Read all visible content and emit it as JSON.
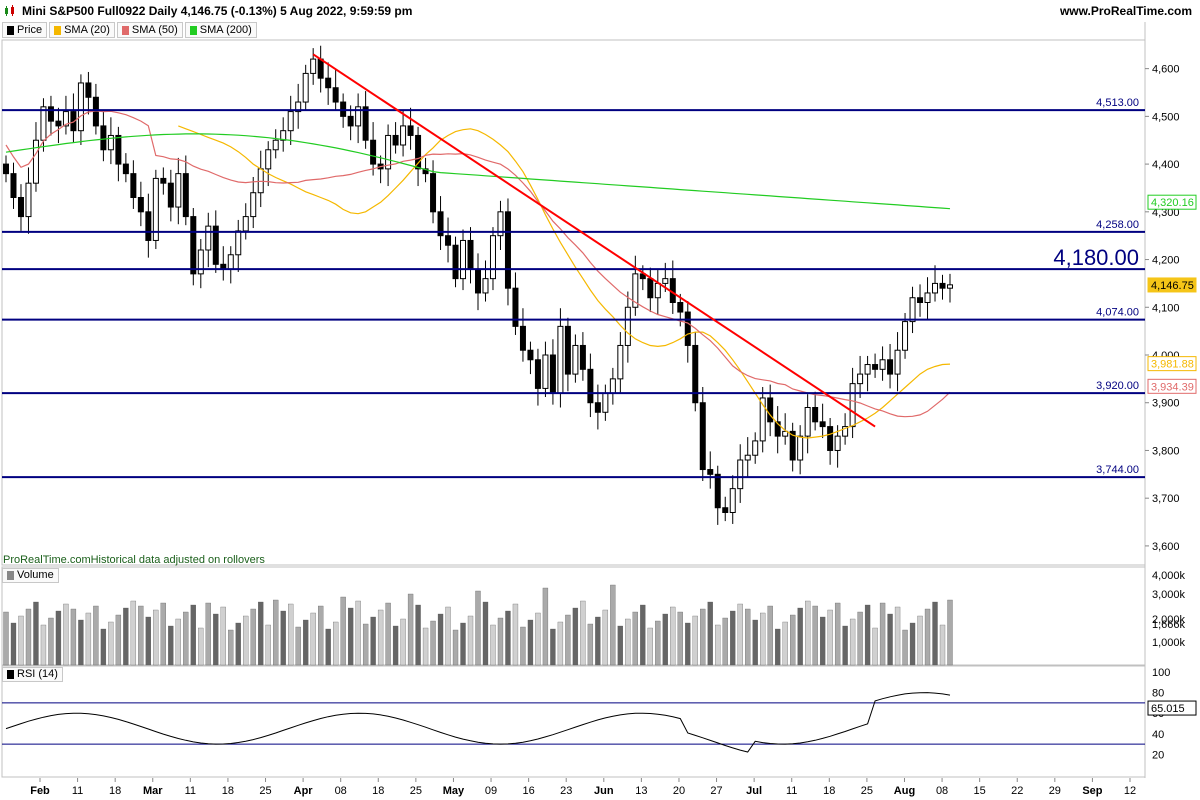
{
  "header": {
    "title": "Mini S&P500 Full0922 Daily 4,146.75 (-0.13%) 5 Aug 2022, 9:59:59 pm",
    "site": "www.ProRealTime.com"
  },
  "legend": {
    "items": [
      {
        "label": "Price",
        "color": "#000000"
      },
      {
        "label": "SMA (20)",
        "color": "#f5b800"
      },
      {
        "label": "SMA (50)",
        "color": "#e06a6a"
      },
      {
        "label": "SMA (200)",
        "color": "#22cc22"
      }
    ]
  },
  "footnote": "ProRealTime.comHistorical data adjusted on rollovers",
  "volume_panel": {
    "label": "Volume"
  },
  "rsi_panel": {
    "label": "RSI (14)"
  },
  "chart_data": {
    "type": "candlestick",
    "title": "Mini S&P500 Full0922 Daily",
    "y_axis": {
      "range": [
        3560,
        4660
      ],
      "ticks": [
        "3,600",
        "3,700",
        "3,800",
        "3,900",
        "4,000",
        "4,100",
        "4,200",
        "4,300",
        "4,400",
        "4,500",
        "4,600"
      ],
      "tick_values": [
        3600,
        3700,
        3800,
        3900,
        4000,
        4100,
        4200,
        4300,
        4400,
        4500,
        4600
      ]
    },
    "x_axis": {
      "ticks": [
        "Feb",
        "11",
        "18",
        "Mar",
        "11",
        "18",
        "25",
        "Apr",
        "08",
        "18",
        "25",
        "May",
        "09",
        "16",
        "23",
        "Jun",
        "13",
        "20",
        "27",
        "Jul",
        "11",
        "18",
        "25",
        "Aug",
        "08",
        "15",
        "22",
        "29",
        "Sep",
        "12"
      ],
      "bold": [
        "Feb",
        "Mar",
        "Apr",
        "May",
        "Jun",
        "Jul",
        "Aug",
        "Sep"
      ]
    },
    "levels": [
      {
        "value": 4513.0,
        "label": "4,513.00"
      },
      {
        "value": 4258.0,
        "label": "4,258.00"
      },
      {
        "value": 4180.0,
        "label": "4,180.00",
        "emphasis": true
      },
      {
        "value": 4074.0,
        "label": "4,074.00"
      },
      {
        "value": 3920.0,
        "label": "3,920.00"
      },
      {
        "value": 3744.0,
        "label": "3,744.00"
      }
    ],
    "trendline": {
      "from": {
        "date": "2022-03-29",
        "value": 4630
      },
      "to": {
        "date": "2022-08-01",
        "value": 3850
      },
      "color": "#ff0000"
    },
    "price_tags": [
      {
        "series": "SMA (200)",
        "label": "4,320.16",
        "value": 4320.16,
        "color": "#22cc22"
      },
      {
        "series": "Price",
        "label": "4,146.75",
        "value": 4146.75,
        "color": "#f5c518"
      },
      {
        "series": "SMA (20)",
        "label": "3,981.88",
        "value": 3981.88,
        "color": "#f5b800"
      },
      {
        "series": "SMA (50)",
        "label": "3,934.39",
        "value": 3934.39,
        "color": "#e06a6a"
      }
    ],
    "close_series": [
      4380,
      4330,
      4290,
      4360,
      4450,
      4520,
      4490,
      4480,
      4510,
      4470,
      4570,
      4540,
      4480,
      4430,
      4460,
      4400,
      4380,
      4330,
      4300,
      4240,
      4370,
      4360,
      4310,
      4380,
      4290,
      4170,
      4220,
      4270,
      4190,
      4180,
      4210,
      4260,
      4290,
      4340,
      4390,
      4430,
      4450,
      4470,
      4510,
      4530,
      4590,
      4620,
      4580,
      4560,
      4530,
      4500,
      4480,
      4520,
      4450,
      4400,
      4390,
      4460,
      4440,
      4480,
      4460,
      4390,
      4380,
      4300,
      4250,
      4230,
      4160,
      4240,
      4180,
      4130,
      4160,
      4250,
      4300,
      4140,
      4060,
      4010,
      3990,
      3930,
      4000,
      3920,
      4060,
      3960,
      4020,
      3970,
      3900,
      3880,
      3920,
      3950,
      4020,
      4100,
      4170,
      4160,
      4120,
      4150,
      4160,
      4110,
      4090,
      4020,
      3900,
      3760,
      3750,
      3680,
      3670,
      3720,
      3780,
      3790,
      3820,
      3910,
      3860,
      3830,
      3840,
      3780,
      3830,
      3890,
      3860,
      3850,
      3800,
      3830,
      3850,
      3940,
      3960,
      3980,
      3970,
      3990,
      3960,
      4010,
      4070,
      4120,
      4110,
      4130,
      4150,
      4140,
      4147
    ],
    "sma20_series": [
      4480,
      4474,
      4468,
      4462,
      4456,
      4450,
      4444,
      4436,
      4426,
      4414,
      4400,
      4390,
      4380,
      4372,
      4365,
      4358,
      4350,
      4342,
      4336,
      4330,
      4324,
      4316,
      4305,
      4298,
      4296,
      4300,
      4310,
      4320,
      4334,
      4350,
      4366,
      4384,
      4402,
      4420,
      4434,
      4450,
      4460,
      4468,
      4472,
      4474,
      4470,
      4462,
      4452,
      4440,
      4426,
      4406,
      4384,
      4356,
      4326,
      4294,
      4264,
      4236,
      4210,
      4184,
      4160,
      4136,
      4114,
      4096,
      4080,
      4062,
      4046,
      4034,
      4026,
      4020,
      4018,
      4020,
      4026,
      4034,
      4044,
      4048,
      4048,
      4040,
      4026,
      4010,
      3990,
      3968,
      3944,
      3920,
      3896,
      3874,
      3856,
      3842,
      3832,
      3828,
      3826,
      3828,
      3830,
      3834,
      3840,
      3846,
      3852,
      3860,
      3868,
      3878,
      3890,
      3904,
      3918,
      3932,
      3946,
      3960,
      3970,
      3976,
      3980,
      3981
    ]
  }
}
